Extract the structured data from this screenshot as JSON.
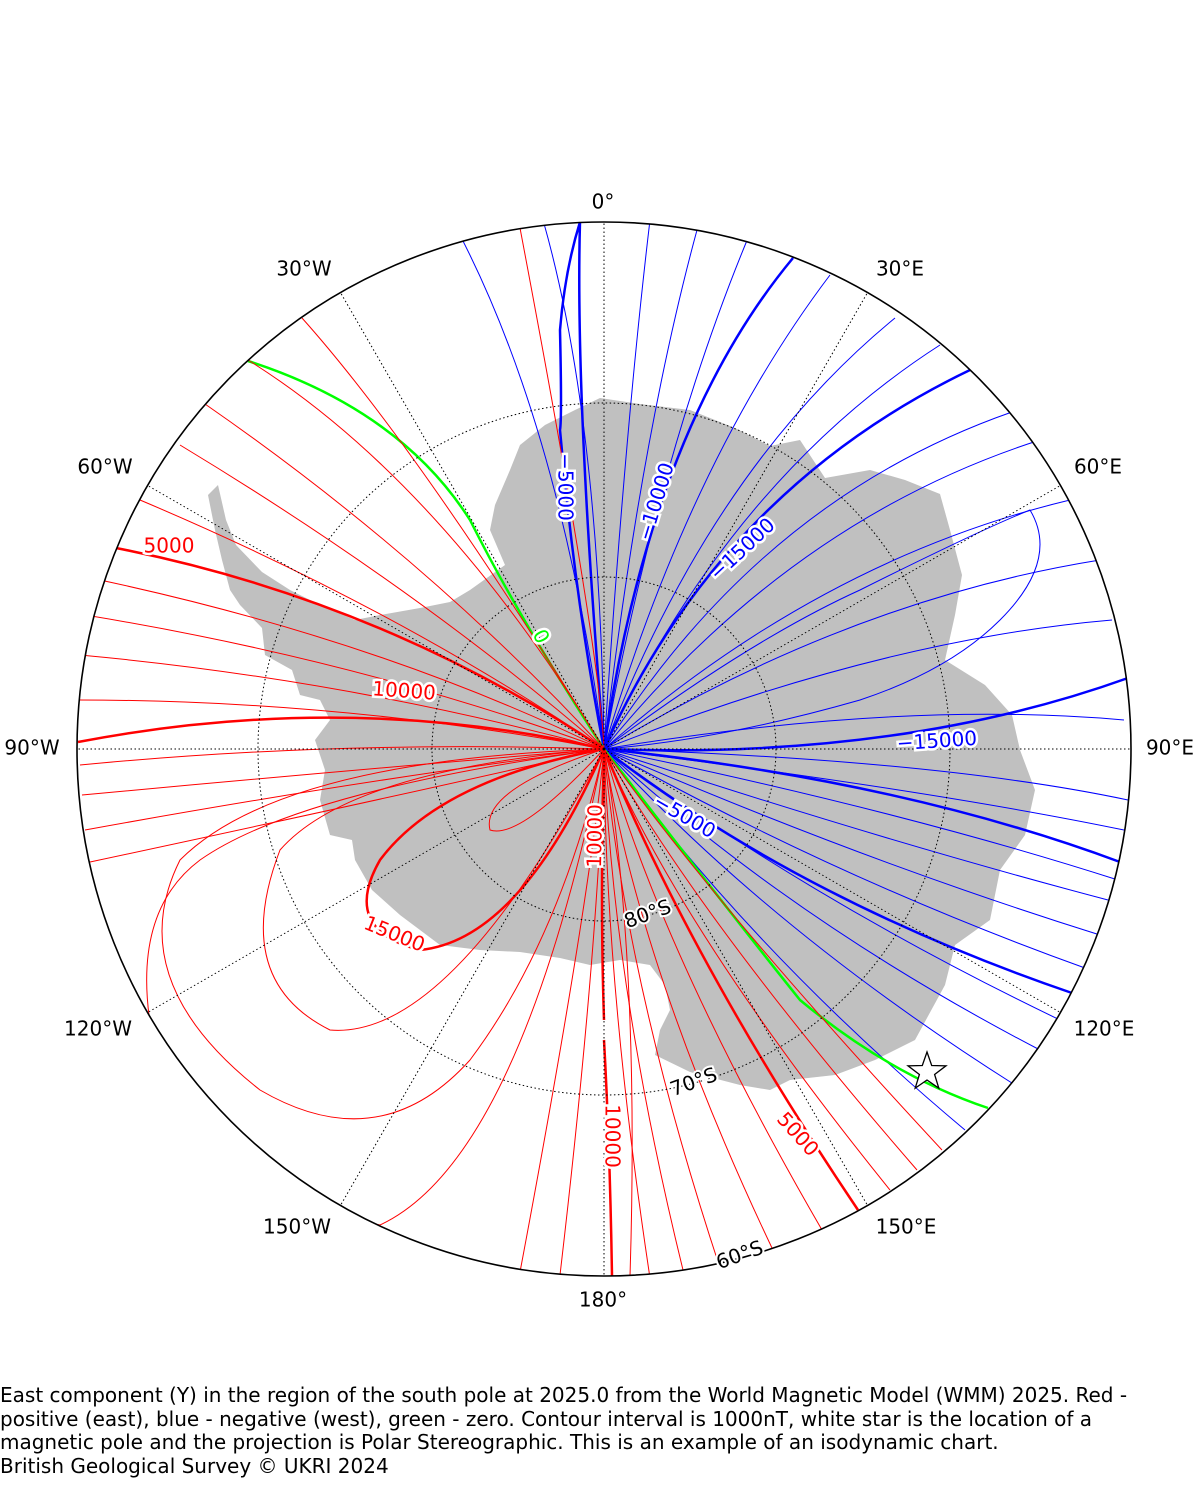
{
  "map": {
    "projection": "Polar Stereographic",
    "longitude_labels": [
      {
        "lon": 0,
        "text": "0°"
      },
      {
        "lon": 30,
        "text": "30°E"
      },
      {
        "lon": 60,
        "text": "60°E"
      },
      {
        "lon": 90,
        "text": "90°E"
      },
      {
        "lon": 120,
        "text": "120°E"
      },
      {
        "lon": 150,
        "text": "150°E"
      },
      {
        "lon": 180,
        "text": "180°"
      },
      {
        "lon": -150,
        "text": "150°W"
      },
      {
        "lon": -120,
        "text": "120°W"
      },
      {
        "lon": -90,
        "text": "90°W"
      },
      {
        "lon": -60,
        "text": "60°W"
      },
      {
        "lon": -30,
        "text": "30°W"
      }
    ],
    "latitude_labels": [
      {
        "lat": -80,
        "text": "80°S"
      },
      {
        "lat": -70,
        "text": "70°S"
      },
      {
        "lat": -60,
        "text": "60°S"
      }
    ],
    "contour_labels": [
      {
        "text": "5000",
        "color": "#ff0000"
      },
      {
        "text": "10000",
        "color": "#ff0000"
      },
      {
        "text": "15000",
        "color": "#ff0000"
      },
      {
        "text": "10000",
        "color": "#ff0000"
      },
      {
        "text": "10000",
        "color": "#ff0000"
      },
      {
        "text": "5000",
        "color": "#ff0000"
      },
      {
        "text": "0",
        "color": "#00ff00"
      },
      {
        "text": "−5000",
        "color": "#0000ff"
      },
      {
        "text": "−10000",
        "color": "#0000ff"
      },
      {
        "text": "−15000",
        "color": "#0000ff"
      },
      {
        "text": "−15000",
        "color": "#0000ff"
      },
      {
        "text": "−5000",
        "color": "#0000ff"
      }
    ],
    "colors": {
      "positive": "#ff0000",
      "negative": "#0000ff",
      "zero": "#00ff00",
      "land": "#c0c0c0",
      "boundary": "#000000"
    },
    "magnetic_pole_marker": "white-star"
  },
  "caption": {
    "text": "East component (Y) in the region of the south pole at 2025.0 from the World Magnetic Model (WMM) 2025. Red - positive (east), blue - negative (west), green - zero. Contour interval is 1000nT, white star is the location of a magnetic pole and the projection is Polar Stereographic. This is an example of an isodynamic chart.",
    "credit": "British Geological Survey © UKRI 2024"
  }
}
